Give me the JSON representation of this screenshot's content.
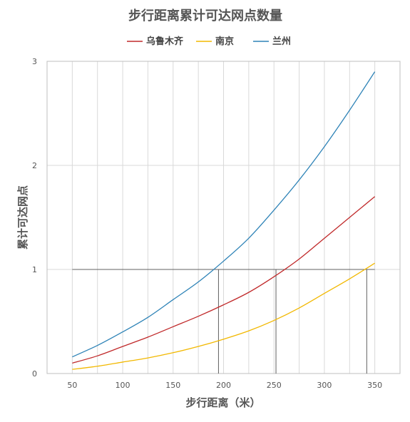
{
  "chart_data": {
    "type": "line",
    "title": "步行距离累计可达网点数量",
    "xlabel": "步行距离（米）",
    "ylabel": "累计可达网点",
    "xlim": [
      25,
      375
    ],
    "ylim": [
      0,
      3
    ],
    "x_ticks": [
      "50",
      "100",
      "150",
      "200",
      "250",
      "300",
      "350"
    ],
    "y_ticks": [
      "0",
      "1",
      "2",
      "3"
    ],
    "grid": true,
    "legend_position": "top",
    "series": [
      {
        "name": "乌鲁木齐",
        "color": "#c0292a",
        "x": [
          50,
          75,
          100,
          125,
          150,
          175,
          200,
          225,
          250,
          275,
          300,
          325,
          350
        ],
        "y": [
          0.1,
          0.17,
          0.26,
          0.35,
          0.45,
          0.55,
          0.66,
          0.78,
          0.93,
          1.1,
          1.3,
          1.5,
          1.7
        ]
      },
      {
        "name": "南京",
        "color": "#f2b800",
        "x": [
          50,
          75,
          100,
          125,
          150,
          175,
          200,
          225,
          250,
          275,
          300,
          325,
          350
        ],
        "y": [
          0.04,
          0.07,
          0.11,
          0.15,
          0.2,
          0.26,
          0.33,
          0.41,
          0.51,
          0.63,
          0.77,
          0.91,
          1.06
        ]
      },
      {
        "name": "兰州",
        "color": "#2e83b7",
        "x": [
          50,
          75,
          100,
          125,
          150,
          175,
          200,
          225,
          250,
          275,
          300,
          325,
          350
        ],
        "y": [
          0.16,
          0.27,
          0.4,
          0.54,
          0.71,
          0.88,
          1.08,
          1.3,
          1.57,
          1.86,
          2.18,
          2.53,
          2.9
        ]
      }
    ],
    "reference": {
      "y": 1,
      "x_from": 50,
      "x_to": 350,
      "crossings": [
        195,
        252,
        342
      ]
    }
  }
}
